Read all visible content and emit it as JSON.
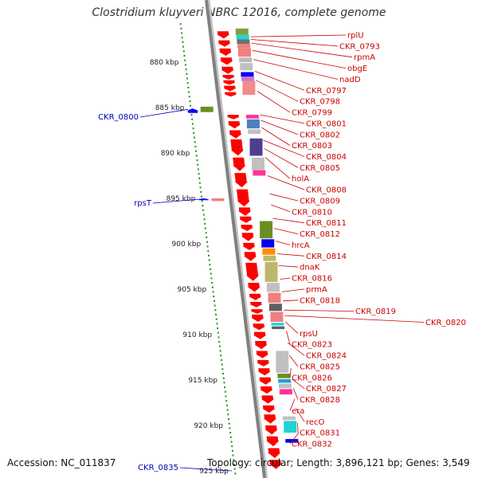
{
  "title": "Clostridium kluyveri NBRC 12016, complete genome",
  "footer": {
    "accession": "Accession: NC_011837",
    "topology": "Topology: circular; Length: 3,896,121 bp; Genes: 3,549"
  },
  "colors": {
    "forward_arrow": "#ff0000",
    "reverse_arrow": "#0000ff",
    "label_right": "#cc0000",
    "label_left": "#0000bb",
    "tick": "#228b22",
    "backbone": "#808080"
  },
  "ticks": [
    {
      "kbp": 880,
      "label": "880 kbp"
    },
    {
      "kbp": 885,
      "label": "885 kbp"
    },
    {
      "kbp": 890,
      "label": "890 kbp"
    },
    {
      "kbp": 895,
      "label": "895 kbp"
    },
    {
      "kbp": 900,
      "label": "900 kbp"
    },
    {
      "kbp": 905,
      "label": "905 kbp"
    },
    {
      "kbp": 910,
      "label": "910 kbp"
    },
    {
      "kbp": 915,
      "label": "915 kbp"
    },
    {
      "kbp": 920,
      "label": "920 kbp"
    },
    {
      "kbp": 925,
      "label": "925 kbp"
    }
  ],
  "genes_right": [
    {
      "name": "rplU",
      "at": 877.2
    },
    {
      "name": "CKR_0793",
      "at": 877.5
    },
    {
      "name": "rpmA",
      "at": 877.9
    },
    {
      "name": "obgE",
      "at": 878.7
    },
    {
      "name": "nadD",
      "at": 879.7
    },
    {
      "name": "CKR_0797",
      "at": 881.0
    },
    {
      "name": "CKR_0798",
      "at": 882.0
    },
    {
      "name": "CKR_0799",
      "at": 883.2
    },
    {
      "name": "CKR_0801",
      "at": 885.8
    },
    {
      "name": "CKR_0802",
      "at": 886.4
    },
    {
      "name": "CKR_0803",
      "at": 887.2
    },
    {
      "name": "CKR_0804",
      "at": 888.6
    },
    {
      "name": "CKR_0805",
      "at": 889.5
    },
    {
      "name": "holA",
      "at": 890.5
    },
    {
      "name": "CKR_0808",
      "at": 892.5
    },
    {
      "name": "CKR_0809",
      "at": 894.5
    },
    {
      "name": "CKR_0810",
      "at": 895.7
    },
    {
      "name": "CKR_0811",
      "at": 897.2
    },
    {
      "name": "CKR_0812",
      "at": 898.3
    },
    {
      "name": "hrcA",
      "at": 899.7
    },
    {
      "name": "CKR_0814",
      "at": 901.1
    },
    {
      "name": "dnaK",
      "at": 902.4
    },
    {
      "name": "CKR_0816",
      "at": 903.9
    },
    {
      "name": "prmA",
      "at": 905.3
    },
    {
      "name": "CKR_0818",
      "at": 906.3
    },
    {
      "name": "CKR_0819",
      "at": 907.3
    },
    {
      "name": "CKR_0820",
      "at": 907.9
    },
    {
      "name": "rpsU",
      "at": 908.6
    },
    {
      "name": "CKR_0823",
      "at": 909.6
    },
    {
      "name": "CKR_0824",
      "at": 910.9
    },
    {
      "name": "CKR_0825",
      "at": 912.3
    },
    {
      "name": "CKR_0826",
      "at": 913.7
    },
    {
      "name": "CKR_0827",
      "at": 914.9
    },
    {
      "name": "CKR_0828",
      "at": 915.9
    },
    {
      "name": "era",
      "at": 917.1
    },
    {
      "name": "recO",
      "at": 918.1
    },
    {
      "name": "CKR_0831",
      "at": 919.7
    },
    {
      "name": "CKR_0832",
      "at": 920.8
    }
  ],
  "genes_left": [
    {
      "name": "CKR_0800",
      "at": 885.2
    },
    {
      "name": "rpsT",
      "at": 895.1
    },
    {
      "name": "CKR_0835",
      "at": 925.0
    }
  ],
  "forward_arrows": [
    [
      876.6,
      877.4
    ],
    [
      877.6,
      878.3
    ],
    [
      878.5,
      879.3
    ],
    [
      879.5,
      880.3
    ],
    [
      880.5,
      881.3
    ],
    [
      881.4,
      881.9
    ],
    [
      882.0,
      882.5
    ],
    [
      882.6,
      883.2
    ],
    [
      883.3,
      883.8
    ],
    [
      885.8,
      886.3
    ],
    [
      886.5,
      887.3
    ],
    [
      887.5,
      888.4
    ],
    [
      888.5,
      890.3
    ],
    [
      890.5,
      892.0
    ],
    [
      892.2,
      893.8
    ],
    [
      894.0,
      895.9
    ],
    [
      896.0,
      896.9
    ],
    [
      897.0,
      897.7
    ],
    [
      897.9,
      898.6
    ],
    [
      898.8,
      899.7
    ],
    [
      899.9,
      900.7
    ],
    [
      900.9,
      901.9
    ],
    [
      902.1,
      904.1
    ],
    [
      904.3,
      905.3
    ],
    [
      905.5,
      906.2
    ],
    [
      906.4,
      907.0
    ],
    [
      907.2,
      907.7
    ],
    [
      907.8,
      908.6
    ],
    [
      908.8,
      909.5
    ],
    [
      909.7,
      910.5
    ],
    [
      910.7,
      911.6
    ],
    [
      911.8,
      912.6
    ],
    [
      912.8,
      913.5
    ],
    [
      913.7,
      914.5
    ],
    [
      914.7,
      915.5
    ],
    [
      915.7,
      916.5
    ],
    [
      916.7,
      917.6
    ],
    [
      917.8,
      918.6
    ],
    [
      918.8,
      919.8
    ],
    [
      920.0,
      921.0
    ],
    [
      921.2,
      922.3
    ],
    [
      922.5,
      923.6
    ],
    [
      923.8,
      924.8
    ]
  ],
  "reverse_arrows": [
    [
      885.1,
      885.6
    ],
    [
      895.0,
      895.2
    ]
  ],
  "cog_boxes_forward": [
    {
      "from": 876.3,
      "to": 877.0,
      "color": "#7f9f3f"
    },
    {
      "from": 877.0,
      "to": 877.5,
      "color": "#22d3d3"
    },
    {
      "from": 877.5,
      "to": 878.0,
      "color": "#707070"
    },
    {
      "from": 878.0,
      "to": 878.5,
      "color": "#f28080"
    },
    {
      "from": 878.5,
      "to": 879.4,
      "color": "#f08080"
    },
    {
      "from": 879.5,
      "to": 880.0,
      "color": "#b8b8b8"
    },
    {
      "from": 880.1,
      "to": 880.9,
      "color": "#c0c0c0"
    },
    {
      "from": 881.1,
      "to": 881.6,
      "color": "#0000ee"
    },
    {
      "from": 881.6,
      "to": 882.1,
      "color": "#d070d0"
    },
    {
      "from": 882.1,
      "to": 883.6,
      "color": "#f28c8c"
    },
    {
      "from": 885.8,
      "to": 886.2,
      "color": "#ff3399"
    },
    {
      "from": 886.3,
      "to": 887.3,
      "color": "#4f80c0"
    },
    {
      "from": 887.4,
      "to": 887.9,
      "color": "#c0c0c0"
    },
    {
      "from": 888.4,
      "to": 890.3,
      "color": "#4b3f8f"
    },
    {
      "from": 890.5,
      "to": 891.9,
      "color": "#c0c0c0"
    },
    {
      "from": 891.9,
      "to": 892.5,
      "color": "#ff3399"
    },
    {
      "from": 897.5,
      "to": 899.4,
      "color": "#6b8e23"
    },
    {
      "from": 899.5,
      "to": 900.4,
      "color": "#0000ee"
    },
    {
      "from": 900.5,
      "to": 901.2,
      "color": "#ff8c00"
    },
    {
      "from": 901.3,
      "to": 901.9,
      "color": "#bdb76b"
    },
    {
      "from": 902.0,
      "to": 904.2,
      "color": "#bdb76b"
    },
    {
      "from": 904.3,
      "to": 905.3,
      "color": "#c0c0c0"
    },
    {
      "from": 905.4,
      "to": 906.5,
      "color": "#f08080"
    },
    {
      "from": 906.6,
      "to": 907.4,
      "color": "#606060"
    },
    {
      "from": 907.5,
      "to": 908.6,
      "color": "#f08080"
    },
    {
      "from": 908.7,
      "to": 909.0,
      "color": "#22d3d3"
    },
    {
      "from": 909.1,
      "to": 909.4,
      "color": "#606060"
    },
    {
      "from": 911.8,
      "to": 914.2,
      "color": "#c0c0c0"
    },
    {
      "from": 914.3,
      "to": 914.8,
      "color": "#6b8e23"
    },
    {
      "from": 914.9,
      "to": 915.3,
      "color": "#22a0d3"
    },
    {
      "from": 915.4,
      "to": 915.9,
      "color": "#c0c0c0"
    },
    {
      "from": 916.0,
      "to": 916.6,
      "color": "#ff3399"
    },
    {
      "from": 919.0,
      "to": 919.4,
      "color": "#c0c0c0"
    },
    {
      "from": 919.5,
      "to": 920.8,
      "color": "#22d3d3"
    },
    {
      "from": 921.5,
      "to": 921.9,
      "color": "#0000ee"
    }
  ],
  "cog_boxes_reverse": [
    {
      "from": 884.9,
      "to": 885.5,
      "color": "#6b8e23"
    },
    {
      "from": 895.0,
      "to": 895.3,
      "color": "#f08080"
    }
  ]
}
